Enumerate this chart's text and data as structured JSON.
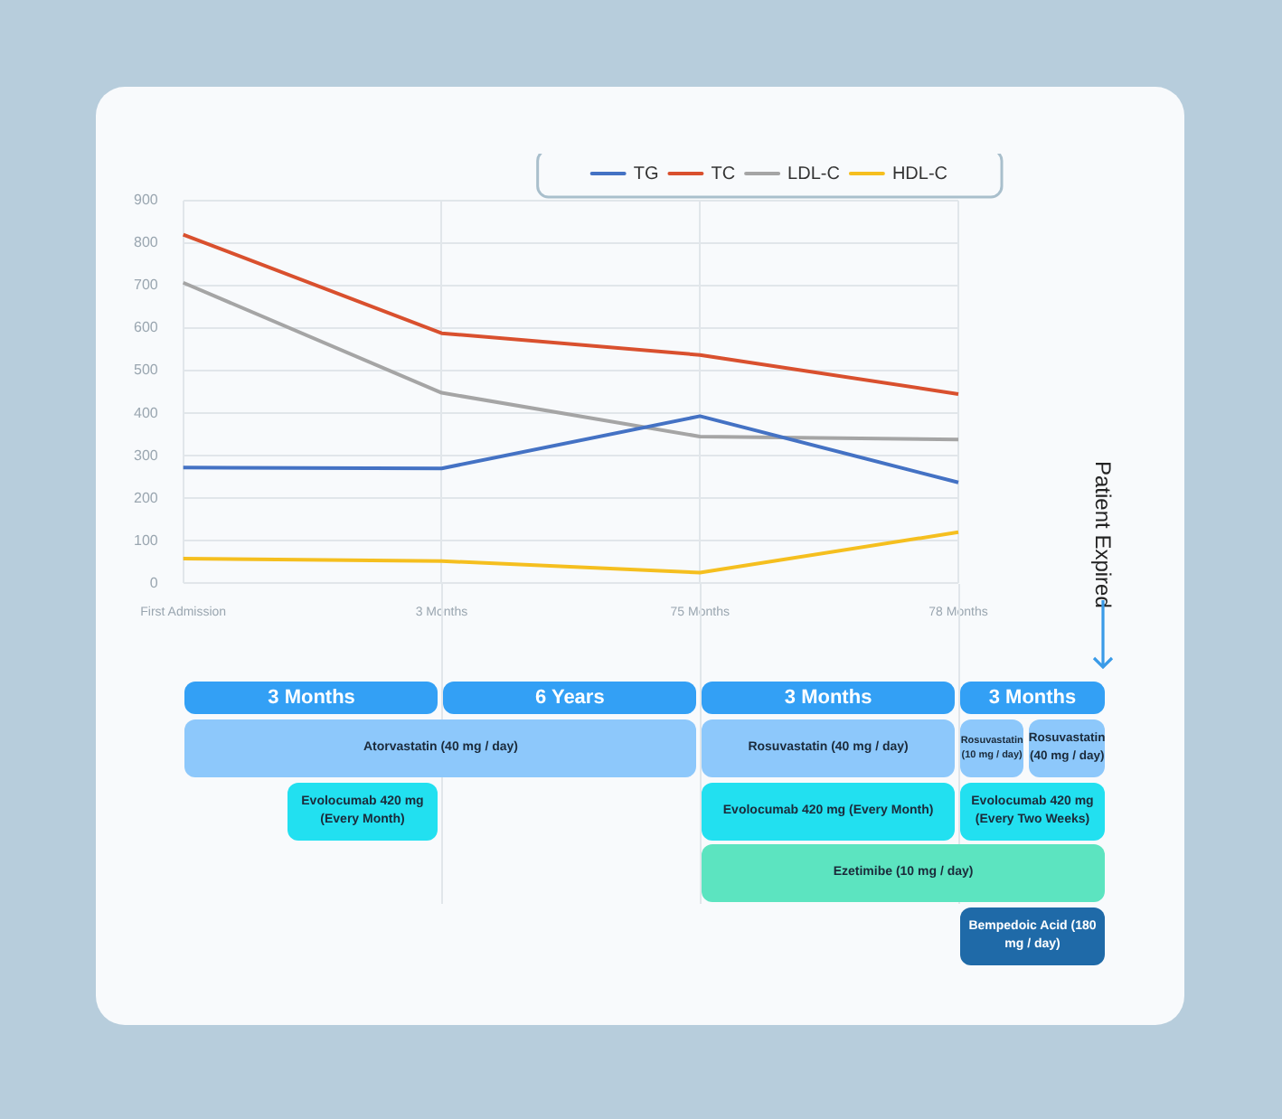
{
  "chart_data": {
    "type": "line",
    "categories": [
      "First Admission",
      "3 Months",
      "75 Months",
      "78 Months"
    ],
    "series": [
      {
        "name": "TG",
        "color": "#4472c4",
        "values": [
          272,
          270,
          393,
          237
        ]
      },
      {
        "name": "TC",
        "color": "#d9502e",
        "values": [
          820,
          588,
          537,
          445
        ]
      },
      {
        "name": "LDL-C",
        "color": "#a5a5a5",
        "values": [
          707,
          448,
          345,
          338
        ]
      },
      {
        "name": "HDL-C",
        "color": "#f5bf1f",
        "values": [
          58,
          52,
          25,
          120
        ]
      }
    ],
    "ylim": [
      0,
      900
    ],
    "yticks": [
      0,
      100,
      200,
      300,
      400,
      500,
      600,
      700,
      800,
      900
    ],
    "grid": true,
    "legend": "top right",
    "marker": "none",
    "line_style": "solid",
    "annotations": [
      "Patient Expired",
      "3 Months",
      "6 Years",
      "3 Months",
      "3 Months",
      "Atorvastatin (40 mg / day)",
      "Rosuvastatin (40 mg / day)",
      "Rosuvastatin (10 mg / day)",
      "Rosuvastatin (40 mg / day)",
      "Evolocumab 420 mg (Every Month)",
      "Evolocumab 420 mg (Every Month)",
      "Evolocumab 420 mg (Every Two Weeks)",
      "Ezetimibe (10 mg / day)",
      "Bempedoic Acid (180 mg / day)"
    ]
  }
}
